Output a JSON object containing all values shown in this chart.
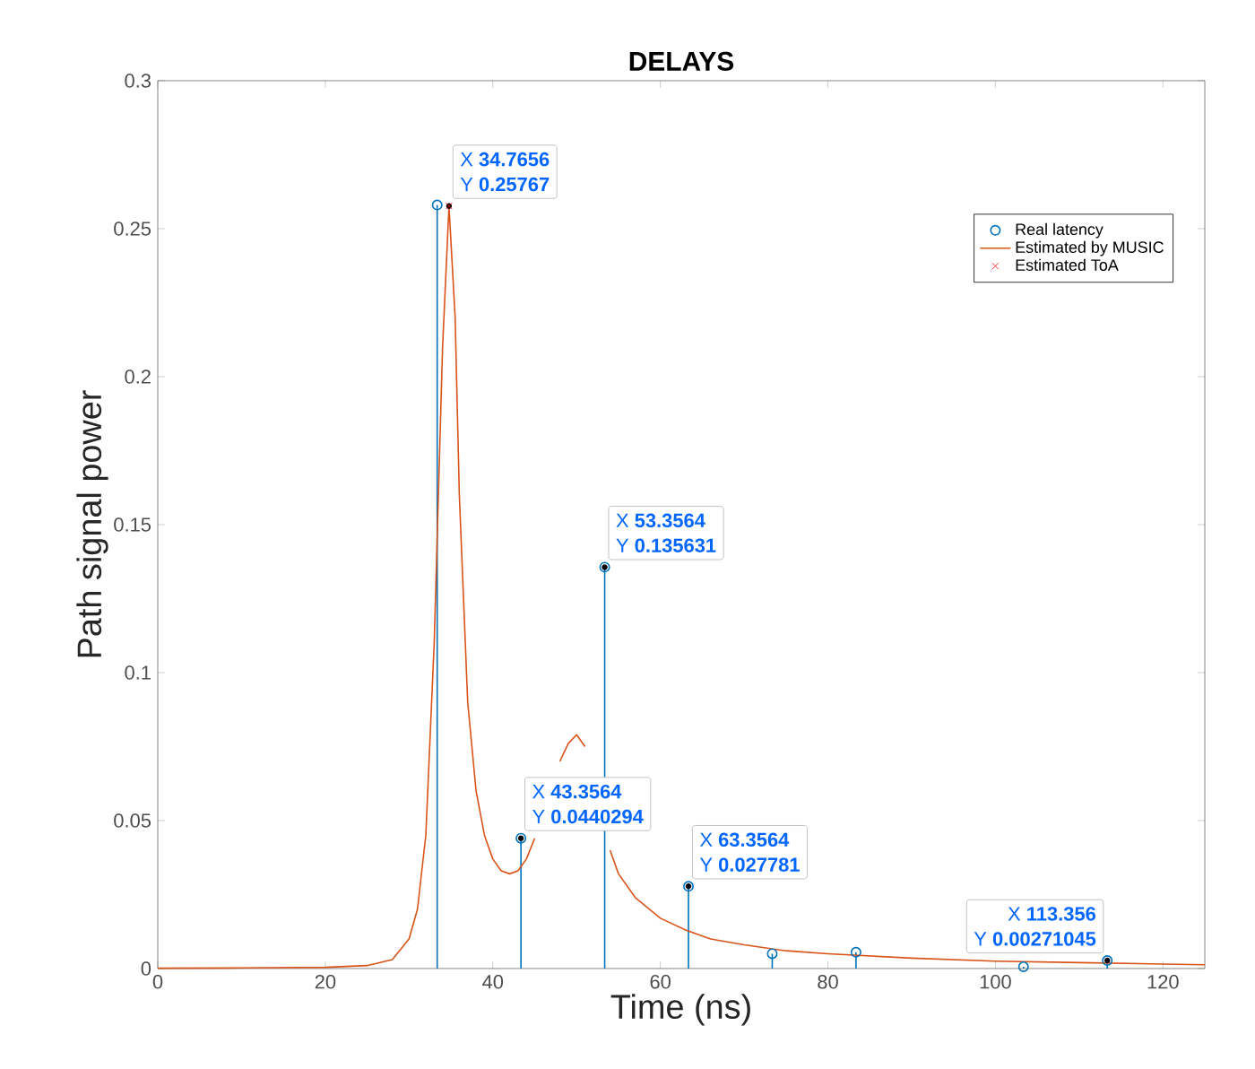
{
  "chart_data": {
    "type": "line",
    "title": "DELAYS",
    "xlabel": "Time (ns)",
    "ylabel": "Path signal power",
    "xlim": [
      0,
      125
    ],
    "ylim": [
      0,
      0.3
    ],
    "xticks": [
      0,
      20,
      40,
      60,
      80,
      100,
      120
    ],
    "yticks": [
      0,
      0.05,
      0.1,
      0.15,
      0.2,
      0.25,
      0.3
    ],
    "grid": false,
    "legend": "top right",
    "series": [
      {
        "name": "Real latency",
        "type": "lollipop",
        "color": "#0072bd",
        "marker": "circle",
        "x": [
          33.3564,
          43.3564,
          53.3564,
          63.3564,
          73.3564,
          83.3564,
          103.356,
          113.356
        ],
        "values": [
          0.258,
          0.0440294,
          0.135631,
          0.027781,
          0.005,
          0.0055,
          0.0006,
          0.00271045
        ]
      },
      {
        "name": "Estimated by MUSIC",
        "color": "#d95319",
        "marker": "none",
        "x": [
          0,
          10,
          20,
          25,
          28,
          30,
          31,
          32,
          33,
          34,
          34.7656,
          35.5,
          36,
          37,
          38,
          39,
          40,
          41,
          42,
          43,
          44,
          45,
          46,
          47,
          48,
          49,
          50,
          51,
          52,
          53,
          54,
          55,
          57,
          60,
          63,
          66,
          70,
          75,
          80,
          90,
          100,
          110,
          120,
          125
        ],
        "values": [
          0.0001,
          0.0002,
          0.0004,
          0.001,
          0.003,
          0.01,
          0.02,
          0.045,
          0.11,
          0.21,
          0.25767,
          0.22,
          0.16,
          0.09,
          0.06,
          0.045,
          0.037,
          0.033,
          0.032,
          0.033,
          0.037,
          0.044,
          null,
          null,
          0.07,
          0.076,
          0.079,
          0.075,
          null,
          null,
          0.04,
          0.032,
          0.024,
          0.017,
          0.013,
          0.01,
          0.008,
          0.006,
          0.005,
          0.0035,
          0.0025,
          0.002,
          0.0015,
          0.0013
        ]
      },
      {
        "name": "Estimated ToA",
        "type": "scatter",
        "color": "#ff0000",
        "marker": "cross",
        "x": [
          34.7656
        ],
        "values": [
          0.25767
        ]
      }
    ],
    "annotations": [
      {
        "text": "X **34.7656**",
        "x": 34.7656,
        "y": 0.25767
      },
      {
        "text": "Y **0.25767**",
        "x": 34.7656,
        "y": 0.25767
      },
      {
        "text": "X **43.3564**",
        "x": 43.3564,
        "y": 0.0440294
      },
      {
        "text": "Y **0.0440294**",
        "x": 43.3564,
        "y": 0.0440294
      },
      {
        "text": "X **53.3564**",
        "x": 53.3564,
        "y": 0.135631
      },
      {
        "text": "Y **0.135631**",
        "x": 53.3564,
        "y": 0.135631
      },
      {
        "text": "X **63.3564**",
        "x": 63.3564,
        "y": 0.027781
      },
      {
        "text": "Y **0.027781**",
        "x": 63.3564,
        "y": 0.027781
      },
      {
        "text": "X **113.356**",
        "x": 113.356,
        "y": 0.00271045
      },
      {
        "text": "Y **0.00271045**",
        "x": 113.356,
        "y": 0.00271045
      }
    ]
  }
}
